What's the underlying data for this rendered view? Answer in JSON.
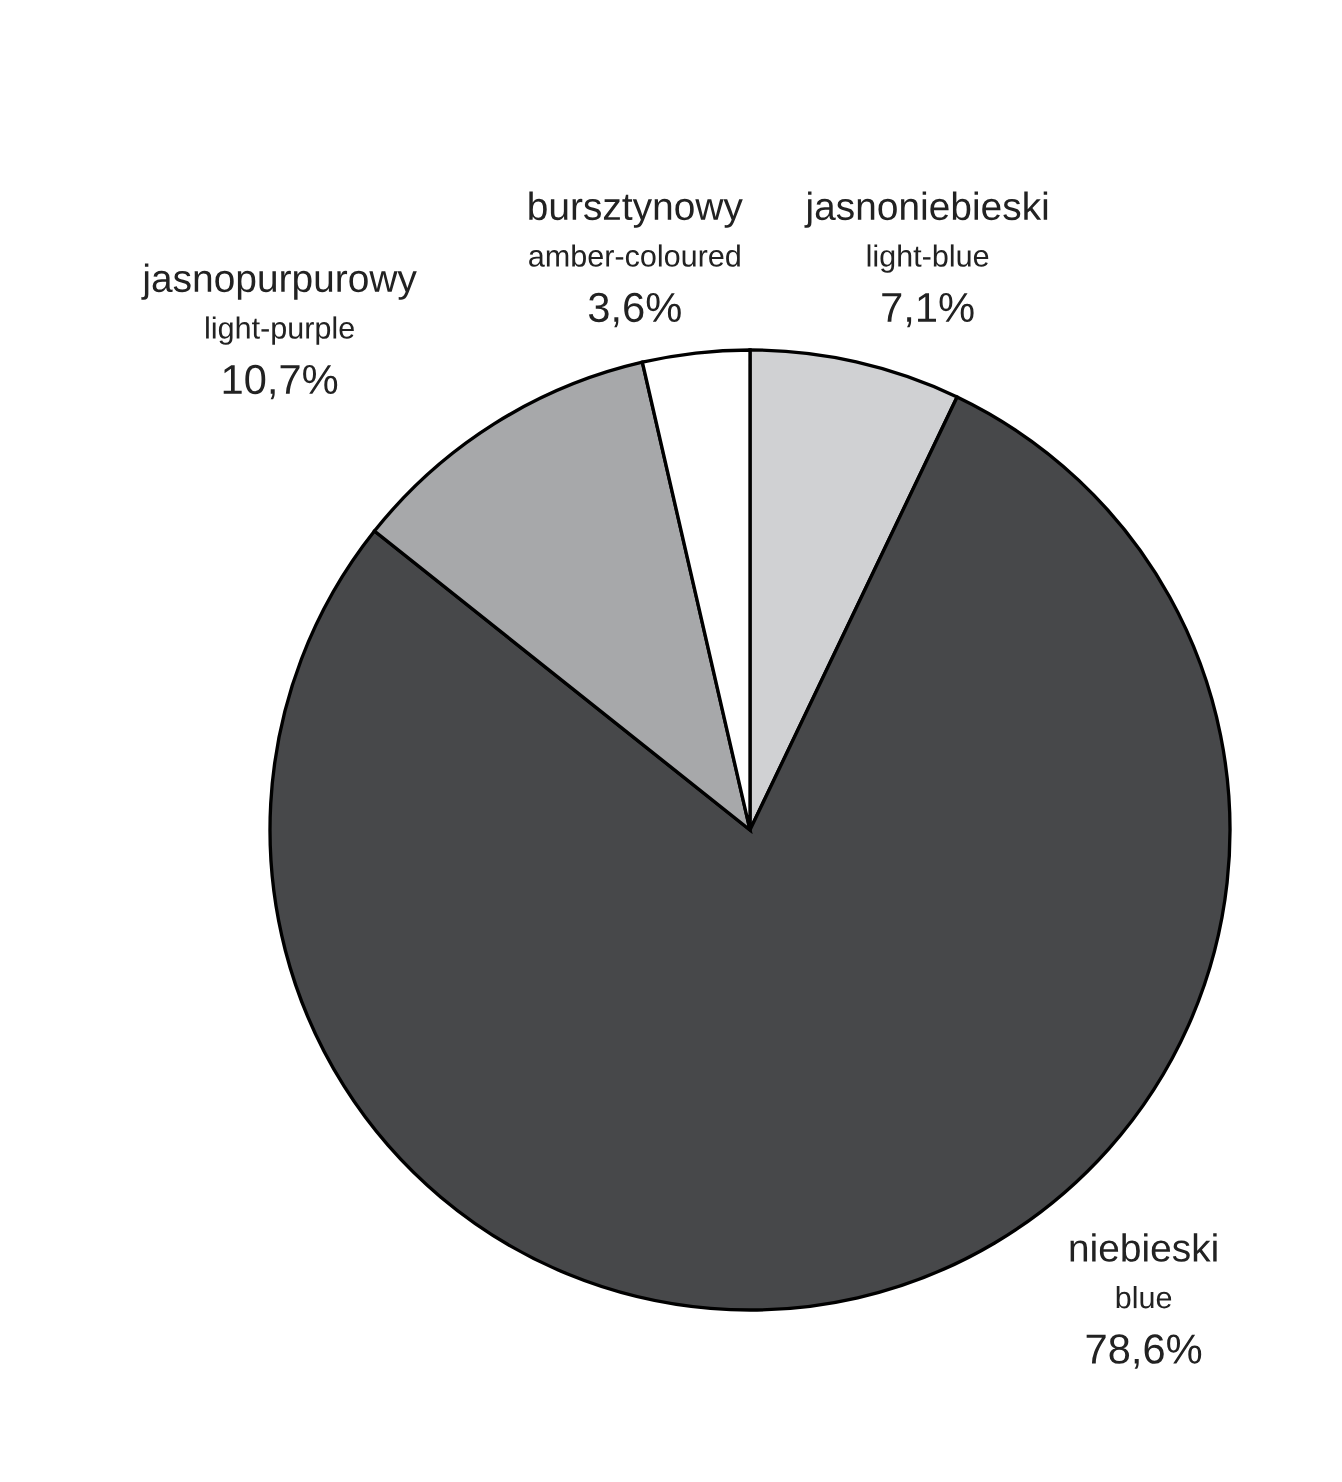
{
  "chart_data": {
    "type": "pie",
    "categories": [
      "jasnoniebieski\nlight-blue",
      "niebieski\nblue",
      "jasnopurpurowy\nlight-purple",
      "bursztynowy\namber-coloured"
    ],
    "values": [
      7.1,
      78.6,
      10.7,
      3.6
    ],
    "value_labels": [
      "7,1%",
      "78,6%",
      "10,7%",
      "3,6%"
    ],
    "colors": [
      "#d0d1d3",
      "#47484a",
      "#a7a8aa",
      "#ffffff"
    ]
  }
}
